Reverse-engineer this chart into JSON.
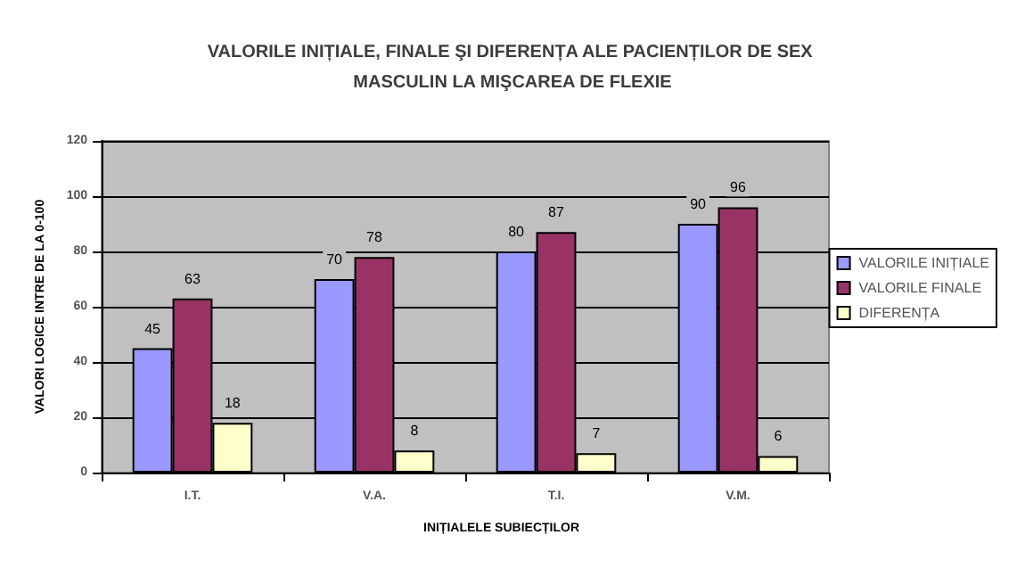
{
  "chart_data": {
    "type": "bar",
    "title": "VALORILE INIȚIALE, FINALE ŞI DIFERENȚA ALE PACIENȚILOR DE SEX MASCULIN LA MIŞCAREA DE FLEXIE",
    "xlabel": "INIȚIALELE SUBIECȚILOR",
    "ylabel": "VALORI LOGICE INTRE DE LA 0-100",
    "categories": [
      "I.T.",
      "V.A.",
      "T.I.",
      "V.M."
    ],
    "series": [
      {
        "name": "VALORILE INIȚIALE",
        "color": "#9999ff",
        "values": [
          45,
          70,
          80,
          90
        ]
      },
      {
        "name": "VALORILE FINALE",
        "color": "#993366",
        "values": [
          63,
          78,
          87,
          96
        ]
      },
      {
        "name": "DIFERENȚA",
        "color": "#ffffcc",
        "values": [
          18,
          8,
          7,
          6
        ]
      }
    ],
    "ylim": [
      0,
      120
    ],
    "yticks": [
      0,
      20,
      40,
      60,
      80,
      100,
      120
    ],
    "grid": "y",
    "legend": "right",
    "data_labels": true
  }
}
